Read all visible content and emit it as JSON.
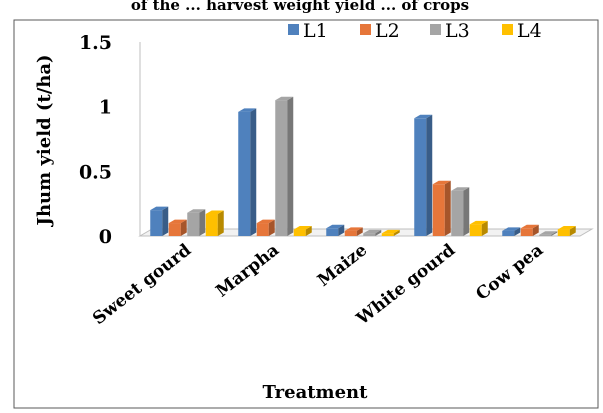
{
  "header_text": "of the ... harvest weight yield ... of crops",
  "chart_data": {
    "type": "bar",
    "title": "",
    "xlabel": "Treatment",
    "ylabel": "Jhum yield (t/ha)",
    "categories": [
      "Sweet gourd",
      "Marpha",
      "Maize",
      "White gourd",
      "Cow pea"
    ],
    "ylim": [
      0,
      1.5
    ],
    "yticks": [
      "0",
      "0.5",
      "1",
      "1.5"
    ],
    "grid": false,
    "legend_position": "top",
    "series": [
      {
        "name": "L1",
        "color": "#4f81bd",
        "values": [
          0.2,
          0.96,
          0.06,
          0.91,
          0.04
        ]
      },
      {
        "name": "L2",
        "color": "#e6763a",
        "values": [
          0.1,
          0.1,
          0.04,
          0.4,
          0.06
        ]
      },
      {
        "name": "L3",
        "color": "#a5a5a5",
        "values": [
          0.18,
          1.05,
          0.02,
          0.35,
          0.01
        ]
      },
      {
        "name": "L4",
        "color": "#ffc000",
        "values": [
          0.17,
          0.05,
          0.02,
          0.09,
          0.05
        ]
      }
    ]
  }
}
